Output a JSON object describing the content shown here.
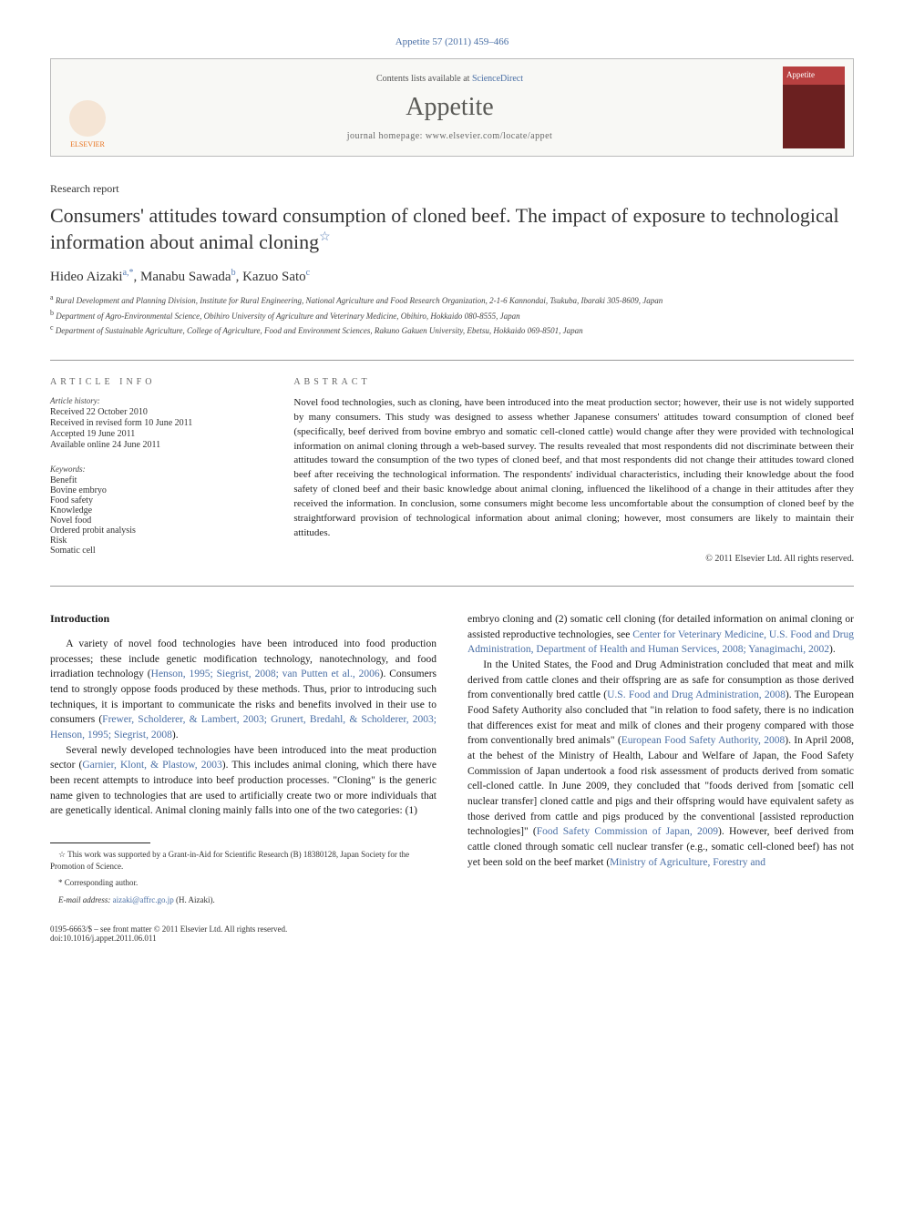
{
  "header": {
    "citation": "Appetite 57 (2011) 459–466",
    "contents_prefix": "Contents lists available at ",
    "contents_link": "ScienceDirect",
    "journal": "Appetite",
    "homepage_prefix": "journal homepage: ",
    "homepage_url": "www.elsevier.com/locate/appet",
    "publisher_logo_text": "ELSEVIER",
    "cover_title": "Appetite"
  },
  "article": {
    "type": "Research report",
    "title": "Consumers' attitudes toward consumption of cloned beef. The impact of exposure to technological information about animal cloning",
    "star": "☆"
  },
  "authors": {
    "a1_name": "Hideo Aizaki",
    "a1_sup": "a,*",
    "a2_name": "Manabu Sawada",
    "a2_sup": "b",
    "a3_name": "Kazuo Sato",
    "a3_sup": "c"
  },
  "affiliations": {
    "a": "Rural Development and Planning Division, Institute for Rural Engineering, National Agriculture and Food Research Organization, 2-1-6 Kannondai, Tsukuba, Ibaraki 305-8609, Japan",
    "b": "Department of Agro-Environmental Science, Obihiro University of Agriculture and Veterinary Medicine, Obihiro, Hokkaido 080-8555, Japan",
    "c": "Department of Sustainable Agriculture, College of Agriculture, Food and Environment Sciences, Rakuno Gakuen University, Ebetsu, Hokkaido 069-8501, Japan"
  },
  "info": {
    "heading_left": "ARTICLE INFO",
    "heading_right": "ABSTRACT",
    "history_label": "Article history:",
    "history": [
      "Received 22 October 2010",
      "Received in revised form 10 June 2011",
      "Accepted 19 June 2011",
      "Available online 24 June 2011"
    ],
    "keywords_label": "Keywords:",
    "keywords": [
      "Benefit",
      "Bovine embryo",
      "Food safety",
      "Knowledge",
      "Novel food",
      "Ordered probit analysis",
      "Risk",
      "Somatic cell"
    ]
  },
  "abstract": {
    "text": "Novel food technologies, such as cloning, have been introduced into the meat production sector; however, their use is not widely supported by many consumers. This study was designed to assess whether Japanese consumers' attitudes toward consumption of cloned beef (specifically, beef derived from bovine embryo and somatic cell-cloned cattle) would change after they were provided with technological information on animal cloning through a web-based survey. The results revealed that most respondents did not discriminate between their attitudes toward the consumption of the two types of cloned beef, and that most respondents did not change their attitudes toward cloned beef after receiving the technological information. The respondents' individual characteristics, including their knowledge about the food safety of cloned beef and their basic knowledge about animal cloning, influenced the likelihood of a change in their attitudes after they received the information. In conclusion, some consumers might become less uncomfortable about the consumption of cloned beef by the straightforward provision of technological information about animal cloning; however, most consumers are likely to maintain their attitudes.",
    "copyright": "© 2011 Elsevier Ltd. All rights reserved."
  },
  "intro": {
    "heading": "Introduction",
    "p1a": "A variety of novel food technologies have been introduced into food production processes; these include genetic modification technology, nanotechnology, and food irradiation technology (",
    "p1c": "Henson, 1995; Siegrist, 2008; van Putten et al., 2006",
    "p1b": "). Consumers tend to strongly oppose foods produced by these methods. Thus, prior to introducing such techniques, it is important to communicate the risks and benefits involved in their use to consumers (",
    "p1d": "Frewer, Scholderer, & Lambert, 2003; Grunert, Bredahl, & Scholderer, 2003; Henson, 1995; Siegrist, 2008",
    "p1e": ").",
    "p2a": "Several newly developed technologies have been introduced into the meat production sector (",
    "p2c": "Garnier, Klont, & Plastow, 2003",
    "p2b": "). This includes animal cloning, which there have been recent attempts to introduce into beef production processes. \"Cloning\" is the generic name given to technologies that are used to artificially create two or more individuals that are genetically identical. Animal cloning mainly falls into one of the two categories: (1) ",
    "p3a": "embryo cloning and (2) somatic cell cloning (for detailed information on animal cloning or assisted reproductive technologies, see ",
    "p3c": "Center for Veterinary Medicine, U.S. Food and Drug Administration, Department of Health and Human Services, 2008; Yanagimachi, 2002",
    "p3b": ").",
    "p4a": "In the United States, the Food and Drug Administration concluded that meat and milk derived from cattle clones and their offspring are as safe for consumption as those derived from conventionally bred cattle (",
    "p4c": "U.S. Food and Drug Administration, 2008",
    "p4b": "). The European Food Safety Authority also concluded that \"in relation to food safety, there is no indication that differences exist for meat and milk of clones and their progeny compared with those from conventionally bred animals\" (",
    "p4d": "European Food Safety Authority, 2008",
    "p4e": "). In April 2008, at the behest of the Ministry of Health, Labour and Welfare of Japan, the Food Safety Commission of Japan undertook a food risk assessment of products derived from somatic cell-cloned cattle. In June 2009, they concluded that \"foods derived from [somatic cell nuclear transfer] cloned cattle and pigs and their offspring would have equivalent safety as those derived from cattle and pigs produced by the conventional [assisted reproduction technologies]\" (",
    "p4f": "Food Safety Commission of Japan, 2009",
    "p4g": "). However, beef derived from cattle cloned through somatic cell nuclear transfer (e.g., somatic cell-cloned beef) has not yet been sold on the beef market (",
    "p4h": "Ministry of Agriculture, Forestry and"
  },
  "footnotes": {
    "f1_star": "☆",
    "f1": " This work was supported by a Grant-in-Aid for Scientific Research (B) 18380128, Japan Society for the Promotion of Science.",
    "f2_star": "*",
    "f2": " Corresponding author.",
    "f3_label": "E-mail address: ",
    "f3_email": "aizaki@affrc.go.jp",
    "f3_tail": " (H. Aizaki)."
  },
  "bottom": {
    "line1": "0195-6663/$ – see front matter © 2011 Elsevier Ltd. All rights reserved.",
    "line2": "doi:10.1016/j.appet.2011.06.011"
  },
  "colors": {
    "link": "#4a6fa5",
    "text": "#1a1a1a",
    "elsevier_orange": "#e8711c",
    "cover_red_top": "#b84040",
    "cover_red_dark": "#6b2020",
    "border_gray": "#bbbbbb"
  }
}
